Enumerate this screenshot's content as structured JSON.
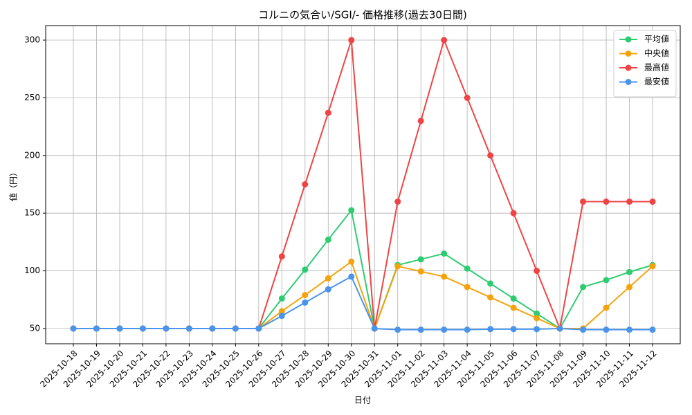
{
  "chart_data": {
    "type": "line",
    "title": "コルニの気合い/SGI/- 価格推移(過去30日間)",
    "x_label": "日付",
    "y_label": "値（円）",
    "categories": [
      "2025-10-18",
      "2025-10-19",
      "2025-10-20",
      "2025-10-21",
      "2025-10-22",
      "2025-10-23",
      "2025-10-24",
      "2025-10-25",
      "2025-10-26",
      "2025-10-27",
      "2025-10-28",
      "2025-10-29",
      "2025-10-30",
      "2025-10-31",
      "2025-11-01",
      "2025-11-02",
      "2025-11-03",
      "2025-11-04",
      "2025-11-05",
      "2025-11-06",
      "2025-11-07",
      "2025-11-08",
      "2025-11-09",
      "2025-11-10",
      "2025-11-11",
      "2025-11-12"
    ],
    "series": [
      {
        "name": "平均値",
        "color": "#2ecc71",
        "values": [
          50,
          50,
          50,
          50,
          50,
          50,
          50,
          50,
          50,
          76,
          101,
          127,
          152.5,
          50,
          105,
          110,
          115,
          102,
          89,
          76,
          63,
          50,
          86,
          92,
          99,
          105
        ]
      },
      {
        "name": "中央値",
        "color": "#f5a30c",
        "values": [
          50,
          50,
          50,
          50,
          50,
          50,
          50,
          50,
          50,
          65,
          79,
          93.5,
          108,
          50,
          104,
          99.5,
          95,
          86,
          77,
          68,
          59,
          50,
          50,
          68,
          86,
          104
        ]
      },
      {
        "name": "最高値",
        "color": "#ef4444",
        "values": [
          50,
          50,
          50,
          50,
          50,
          50,
          50,
          50,
          50,
          112.5,
          175,
          237,
          300,
          50,
          160,
          230,
          300,
          250,
          200,
          150,
          100,
          50,
          160,
          160,
          160,
          160
        ]
      },
      {
        "name": "最安値",
        "color": "#4a94ec",
        "values": [
          50,
          50,
          50,
          50,
          50,
          50,
          50,
          50,
          50,
          61,
          72.5,
          84,
          95,
          50,
          49,
          49,
          49,
          49,
          49.5,
          49.5,
          49.5,
          50,
          49,
          49,
          49,
          49
        ]
      }
    ],
    "ylim": [
      36.8,
      312.6
    ],
    "yticks": [
      50,
      100,
      150,
      200,
      250,
      300
    ],
    "grid": true,
    "legend": "upper-right"
  }
}
